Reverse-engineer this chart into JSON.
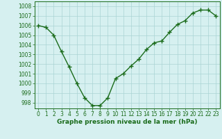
{
  "x": [
    0,
    1,
    2,
    3,
    4,
    5,
    6,
    7,
    8,
    9,
    10,
    11,
    12,
    13,
    14,
    15,
    16,
    17,
    18,
    19,
    20,
    21,
    22,
    23
  ],
  "y": [
    1006.0,
    1005.8,
    1005.0,
    1003.3,
    1001.7,
    1000.0,
    998.5,
    997.7,
    997.7,
    998.5,
    1000.5,
    1001.0,
    1001.8,
    1002.5,
    1003.5,
    1004.2,
    1004.4,
    1005.3,
    1006.1,
    1006.5,
    1007.3,
    1007.6,
    1007.6,
    1007.0
  ],
  "line_color": "#1a6b1a",
  "marker": "+",
  "marker_size": 4,
  "bg_color": "#d6f0f0",
  "grid_color": "#aad4d4",
  "xlabel": "Graphe pression niveau de la mer (hPa)",
  "xlabel_fontsize": 6.5,
  "ytick_labels": [
    "998",
    "999",
    "1000",
    "1001",
    "1002",
    "1003",
    "1004",
    "1005",
    "1006",
    "1007",
    "1008"
  ],
  "ytick_values": [
    998,
    999,
    1000,
    1001,
    1002,
    1003,
    1004,
    1005,
    1006,
    1007,
    1008
  ],
  "ylim": [
    997.4,
    1008.5
  ],
  "xlim": [
    -0.5,
    23.5
  ],
  "xtick_labels": [
    "0",
    "1",
    "2",
    "3",
    "4",
    "5",
    "6",
    "7",
    "8",
    "9",
    "10",
    "11",
    "12",
    "13",
    "14",
    "15",
    "16",
    "17",
    "18",
    "19",
    "20",
    "21",
    "22",
    "23"
  ],
  "tick_fontsize": 5.5,
  "line_width": 1.0
}
